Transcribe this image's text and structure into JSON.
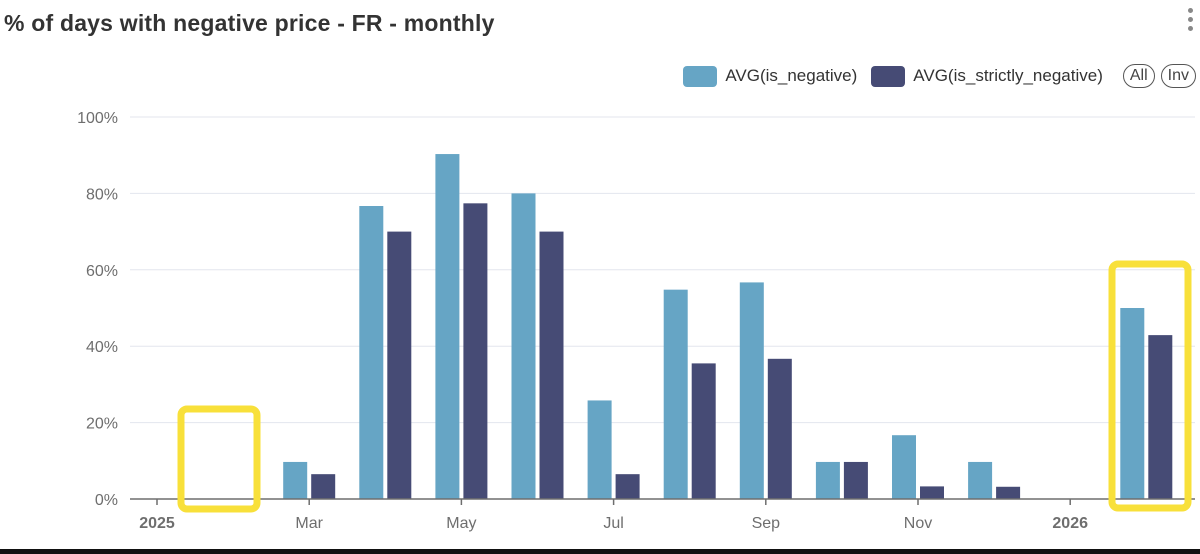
{
  "header": {
    "title": "% of days with negative price - FR - monthly"
  },
  "legend": {
    "all_label": "All",
    "inv_label": "Inv"
  },
  "chart_data": {
    "type": "bar",
    "title": "% of days with negative price - FR - monthly",
    "categories": [
      "2025-01",
      "2025-02",
      "2025-03",
      "2025-04",
      "2025-05",
      "2025-06",
      "2025-07",
      "2025-08",
      "2025-09",
      "2025-10",
      "2025-11",
      "2025-12",
      "2026-01",
      "2026-02"
    ],
    "x_tick_labels": [
      {
        "month": "2025-01",
        "label": "2025",
        "bold": true
      },
      {
        "month": "2025-03",
        "label": "Mar"
      },
      {
        "month": "2025-05",
        "label": "May"
      },
      {
        "month": "2025-07",
        "label": "Jul"
      },
      {
        "month": "2025-09",
        "label": "Sep"
      },
      {
        "month": "2025-11",
        "label": "Nov"
      },
      {
        "month": "2026-01",
        "label": "2026",
        "bold": true
      }
    ],
    "series": [
      {
        "name": "AVG(is_negative)",
        "color": "#66a5c5",
        "values": [
          0,
          0,
          9.7,
          76.7,
          90.3,
          80.0,
          25.8,
          54.8,
          56.7,
          9.7,
          16.7,
          9.7,
          0,
          50.0
        ]
      },
      {
        "name": "AVG(is_strictly_negative)",
        "color": "#464b75",
        "values": [
          0,
          0,
          6.5,
          70.0,
          77.4,
          70.0,
          6.5,
          35.5,
          36.7,
          9.7,
          3.3,
          3.2,
          0,
          42.9
        ]
      }
    ],
    "ylim": [
      0,
      100
    ],
    "y_ticks": [
      "0%",
      "20%",
      "40%",
      "60%",
      "80%",
      "100%"
    ],
    "grid": true,
    "legend_position": "top-right",
    "highlight_boxes": [
      {
        "months": [
          "2025-02"
        ],
        "color": "#f8e03a"
      },
      {
        "months": [
          "2026-02"
        ],
        "color": "#f8e03a"
      }
    ]
  }
}
